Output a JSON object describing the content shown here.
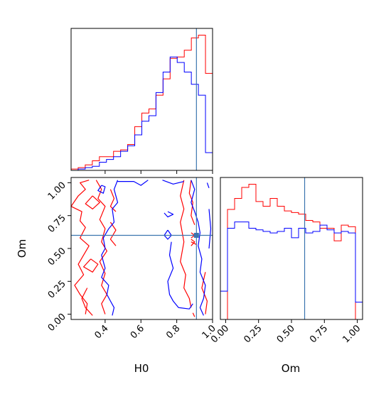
{
  "chart_data": [
    {
      "type": "histogram",
      "panel": "H0 marginal",
      "x_param": "H0",
      "xlim": [
        0.21,
        1.0
      ],
      "truth": 0.91,
      "colors": {
        "truth": "#3b75af"
      },
      "bin_edges": [
        0.21,
        0.2495,
        0.289,
        0.3285,
        0.368,
        0.4075,
        0.447,
        0.4865,
        0.526,
        0.5655,
        0.605,
        0.6445,
        0.684,
        0.7235,
        0.763,
        0.8025,
        0.842,
        0.8815,
        0.921,
        0.9605,
        1.0
      ],
      "series": [
        {
          "color": "#ff0000",
          "counts": [
            1,
            2,
            4,
            7,
            10,
            10,
            14,
            15,
            19,
            32,
            42,
            45,
            55,
            67,
            82,
            83,
            88,
            97,
            99,
            71
          ]
        },
        {
          "color": "#0000ff",
          "counts": [
            0,
            1,
            2,
            3,
            6,
            8,
            10,
            14,
            18,
            26,
            36,
            40,
            57,
            72,
            83,
            79,
            72,
            63,
            55,
            13
          ]
        }
      ]
    },
    {
      "type": "contour",
      "panel": "H0 vs Om joint",
      "x_param": "H0",
      "y_param": "Om",
      "xlim": [
        0.21,
        1.0
      ],
      "ylim": [
        -0.04,
        1.04
      ],
      "xticks": [
        "0.4",
        "0.6",
        "0.8",
        "1.0"
      ],
      "yticks": [
        "0.00",
        "0.25",
        "0.50",
        "0.75",
        "1.00"
      ],
      "truth": {
        "x": 0.91,
        "y": 0.6
      },
      "xlabel": "H0",
      "ylabel": "Om",
      "colors": {
        "truth": "#3b75af"
      },
      "series": [
        {
          "color": "#ff0000",
          "contours": [
            [
              [
                0.31,
                1.02
              ],
              [
                0.26,
                1.0
              ],
              [
                0.29,
                0.95
              ],
              [
                0.25,
                0.9
              ],
              [
                0.21,
                0.82
              ],
              [
                0.27,
                0.78
              ],
              [
                0.26,
                0.71
              ],
              [
                0.29,
                0.66
              ],
              [
                0.26,
                0.58
              ],
              [
                0.31,
                0.52
              ],
              [
                0.28,
                0.45
              ],
              [
                0.25,
                0.38
              ],
              [
                0.28,
                0.3
              ],
              [
                0.23,
                0.22
              ],
              [
                0.26,
                0.15
              ],
              [
                0.3,
                0.08
              ],
              [
                0.29,
                0.0
              ]
            ],
            [
              [
                0.3,
                0.2
              ],
              [
                0.27,
                0.12
              ],
              [
                0.29,
                0.05
              ],
              [
                0.33,
                -0.01
              ]
            ],
            [
              [
                0.33,
                0.9
              ],
              [
                0.29,
                0.84
              ],
              [
                0.33,
                0.8
              ],
              [
                0.37,
                0.85
              ],
              [
                0.33,
                0.9
              ]
            ],
            [
              [
                0.32,
                0.42
              ],
              [
                0.28,
                0.36
              ],
              [
                0.33,
                0.32
              ],
              [
                0.36,
                0.38
              ],
              [
                0.32,
                0.42
              ]
            ],
            [
              [
                0.35,
                1.02
              ],
              [
                0.38,
                0.95
              ],
              [
                0.36,
                0.88
              ],
              [
                0.4,
                0.82
              ],
              [
                0.37,
                0.72
              ],
              [
                0.4,
                0.65
              ],
              [
                0.38,
                0.55
              ],
              [
                0.41,
                0.48
              ],
              [
                0.37,
                0.4
              ],
              [
                0.4,
                0.31
              ],
              [
                0.38,
                0.22
              ],
              [
                0.41,
                0.15
              ],
              [
                0.38,
                0.08
              ],
              [
                0.4,
                0.0
              ]
            ],
            [
              [
                0.43,
                0.95
              ],
              [
                0.45,
                0.88
              ],
              [
                0.43,
                0.82
              ],
              [
                0.46,
                0.78
              ]
            ],
            [
              [
                0.43,
                0.7
              ],
              [
                0.46,
                0.64
              ],
              [
                0.43,
                0.57
              ],
              [
                0.46,
                0.52
              ]
            ],
            [
              [
                0.84,
                1.02
              ],
              [
                0.82,
                0.9
              ],
              [
                0.84,
                0.8
              ],
              [
                0.82,
                0.7
              ],
              [
                0.84,
                0.55
              ],
              [
                0.82,
                0.4
              ],
              [
                0.85,
                0.3
              ],
              [
                0.84,
                0.2
              ],
              [
                0.87,
                0.12
              ],
              [
                0.88,
                0.05
              ]
            ],
            [
              [
                0.88,
                1.02
              ],
              [
                0.87,
                0.92
              ],
              [
                0.89,
                0.85
              ],
              [
                0.88,
                0.75
              ],
              [
                0.9,
                0.68
              ]
            ],
            [
              [
                0.96,
                0.32
              ],
              [
                0.94,
                0.2
              ],
              [
                0.97,
                0.1
              ],
              [
                0.96,
                0.0
              ]
            ],
            [
              [
                0.89,
                0.01
              ],
              [
                0.9,
                -0.02
              ]
            ],
            [
              [
                0.88,
                0.62
              ],
              [
                0.9,
                0.6
              ],
              [
                0.88,
                0.58
              ]
            ],
            [
              [
                0.88,
                0.57
              ],
              [
                0.9,
                0.55
              ],
              [
                0.88,
                0.52
              ]
            ],
            [
              [
                0.88,
                0.55
              ],
              [
                0.91,
                0.53
              ]
            ]
          ]
        },
        {
          "color": "#0000ff",
          "contours": [
            [
              [
                0.47,
                1.02
              ],
              [
                0.45,
                0.95
              ],
              [
                0.47,
                0.85
              ],
              [
                0.44,
                0.8
              ],
              [
                0.45,
                0.7
              ],
              [
                0.42,
                0.65
              ],
              [
                0.39,
                0.58
              ],
              [
                0.4,
                0.5
              ],
              [
                0.38,
                0.45
              ],
              [
                0.4,
                0.35
              ],
              [
                0.38,
                0.28
              ],
              [
                0.42,
                0.22
              ],
              [
                0.41,
                0.15
              ],
              [
                0.43,
                0.1
              ],
              [
                0.45,
                0.05
              ],
              [
                0.44,
                -0.01
              ]
            ],
            [
              [
                0.38,
                0.98
              ],
              [
                0.36,
                0.94
              ],
              [
                0.39,
                0.92
              ],
              [
                0.4,
                0.97
              ],
              [
                0.38,
                0.98
              ]
            ],
            [
              [
                0.47,
                1.01
              ],
              [
                0.56,
                1.01
              ],
              [
                0.6,
                0.98
              ],
              [
                0.64,
                1.02
              ]
            ],
            [
              [
                0.72,
                1.02
              ],
              [
                0.78,
                0.99
              ],
              [
                0.84,
                1.01
              ]
            ],
            [
              [
                0.77,
                0.55
              ],
              [
                0.76,
                0.45
              ],
              [
                0.78,
                0.35
              ],
              [
                0.75,
                0.25
              ],
              [
                0.76,
                0.15
              ],
              [
                0.78,
                0.1
              ],
              [
                0.81,
                0.05
              ],
              [
                0.87,
                0.04
              ],
              [
                0.89,
                0.08
              ]
            ],
            [
              [
                0.88,
                1.02
              ],
              [
                0.9,
                0.95
              ],
              [
                0.88,
                0.85
              ],
              [
                0.9,
                0.78
              ],
              [
                0.92,
                0.7
              ],
              [
                0.93,
                0.62
              ],
              [
                0.92,
                0.52
              ],
              [
                0.94,
                0.42
              ],
              [
                0.93,
                0.32
              ],
              [
                0.96,
                0.22
              ],
              [
                0.95,
                0.12
              ],
              [
                0.93,
                0.05
              ],
              [
                0.95,
                -0.01
              ]
            ],
            [
              [
                0.98,
                0.8
              ],
              [
                0.99,
                0.65
              ],
              [
                0.98,
                0.5
              ]
            ],
            [
              [
                0.97,
                1.0
              ],
              [
                0.98,
                0.96
              ]
            ],
            [
              [
                0.75,
                0.78
              ],
              [
                0.78,
                0.76
              ],
              [
                0.75,
                0.74
              ],
              [
                0.73,
                0.77
              ]
            ],
            [
              [
                0.75,
                0.64
              ],
              [
                0.77,
                0.6
              ],
              [
                0.75,
                0.57
              ],
              [
                0.73,
                0.6
              ],
              [
                0.75,
                0.64
              ]
            ]
          ]
        }
      ]
    },
    {
      "type": "histogram",
      "panel": "Om marginal",
      "x_param": "Om",
      "xlim": [
        -0.04,
        1.04
      ],
      "xticks": [
        "0.00",
        "0.25",
        "0.50",
        "0.75",
        "1.00"
      ],
      "truth": 0.6,
      "xlabel": "Om",
      "colors": {
        "truth": "#3b75af"
      },
      "bin_edges": [
        -0.04,
        0.014,
        0.068,
        0.122,
        0.176,
        0.23,
        0.284,
        0.338,
        0.392,
        0.446,
        0.5,
        0.554,
        0.608,
        0.662,
        0.716,
        0.77,
        0.824,
        0.878,
        0.932,
        0.986,
        1.04
      ],
      "series": [
        {
          "color": "#ff0000",
          "counts": [
            0,
            70,
            77,
            84,
            86,
            75,
            72,
            77,
            72,
            69,
            68,
            67,
            63,
            62,
            58,
            58,
            50,
            60,
            59,
            0
          ]
        },
        {
          "color": "#0000ff",
          "counts": [
            18,
            58,
            62,
            62,
            58,
            57,
            56,
            55,
            56,
            58,
            52,
            58,
            55,
            56,
            60,
            57,
            55,
            56,
            55,
            11
          ]
        }
      ]
    }
  ]
}
